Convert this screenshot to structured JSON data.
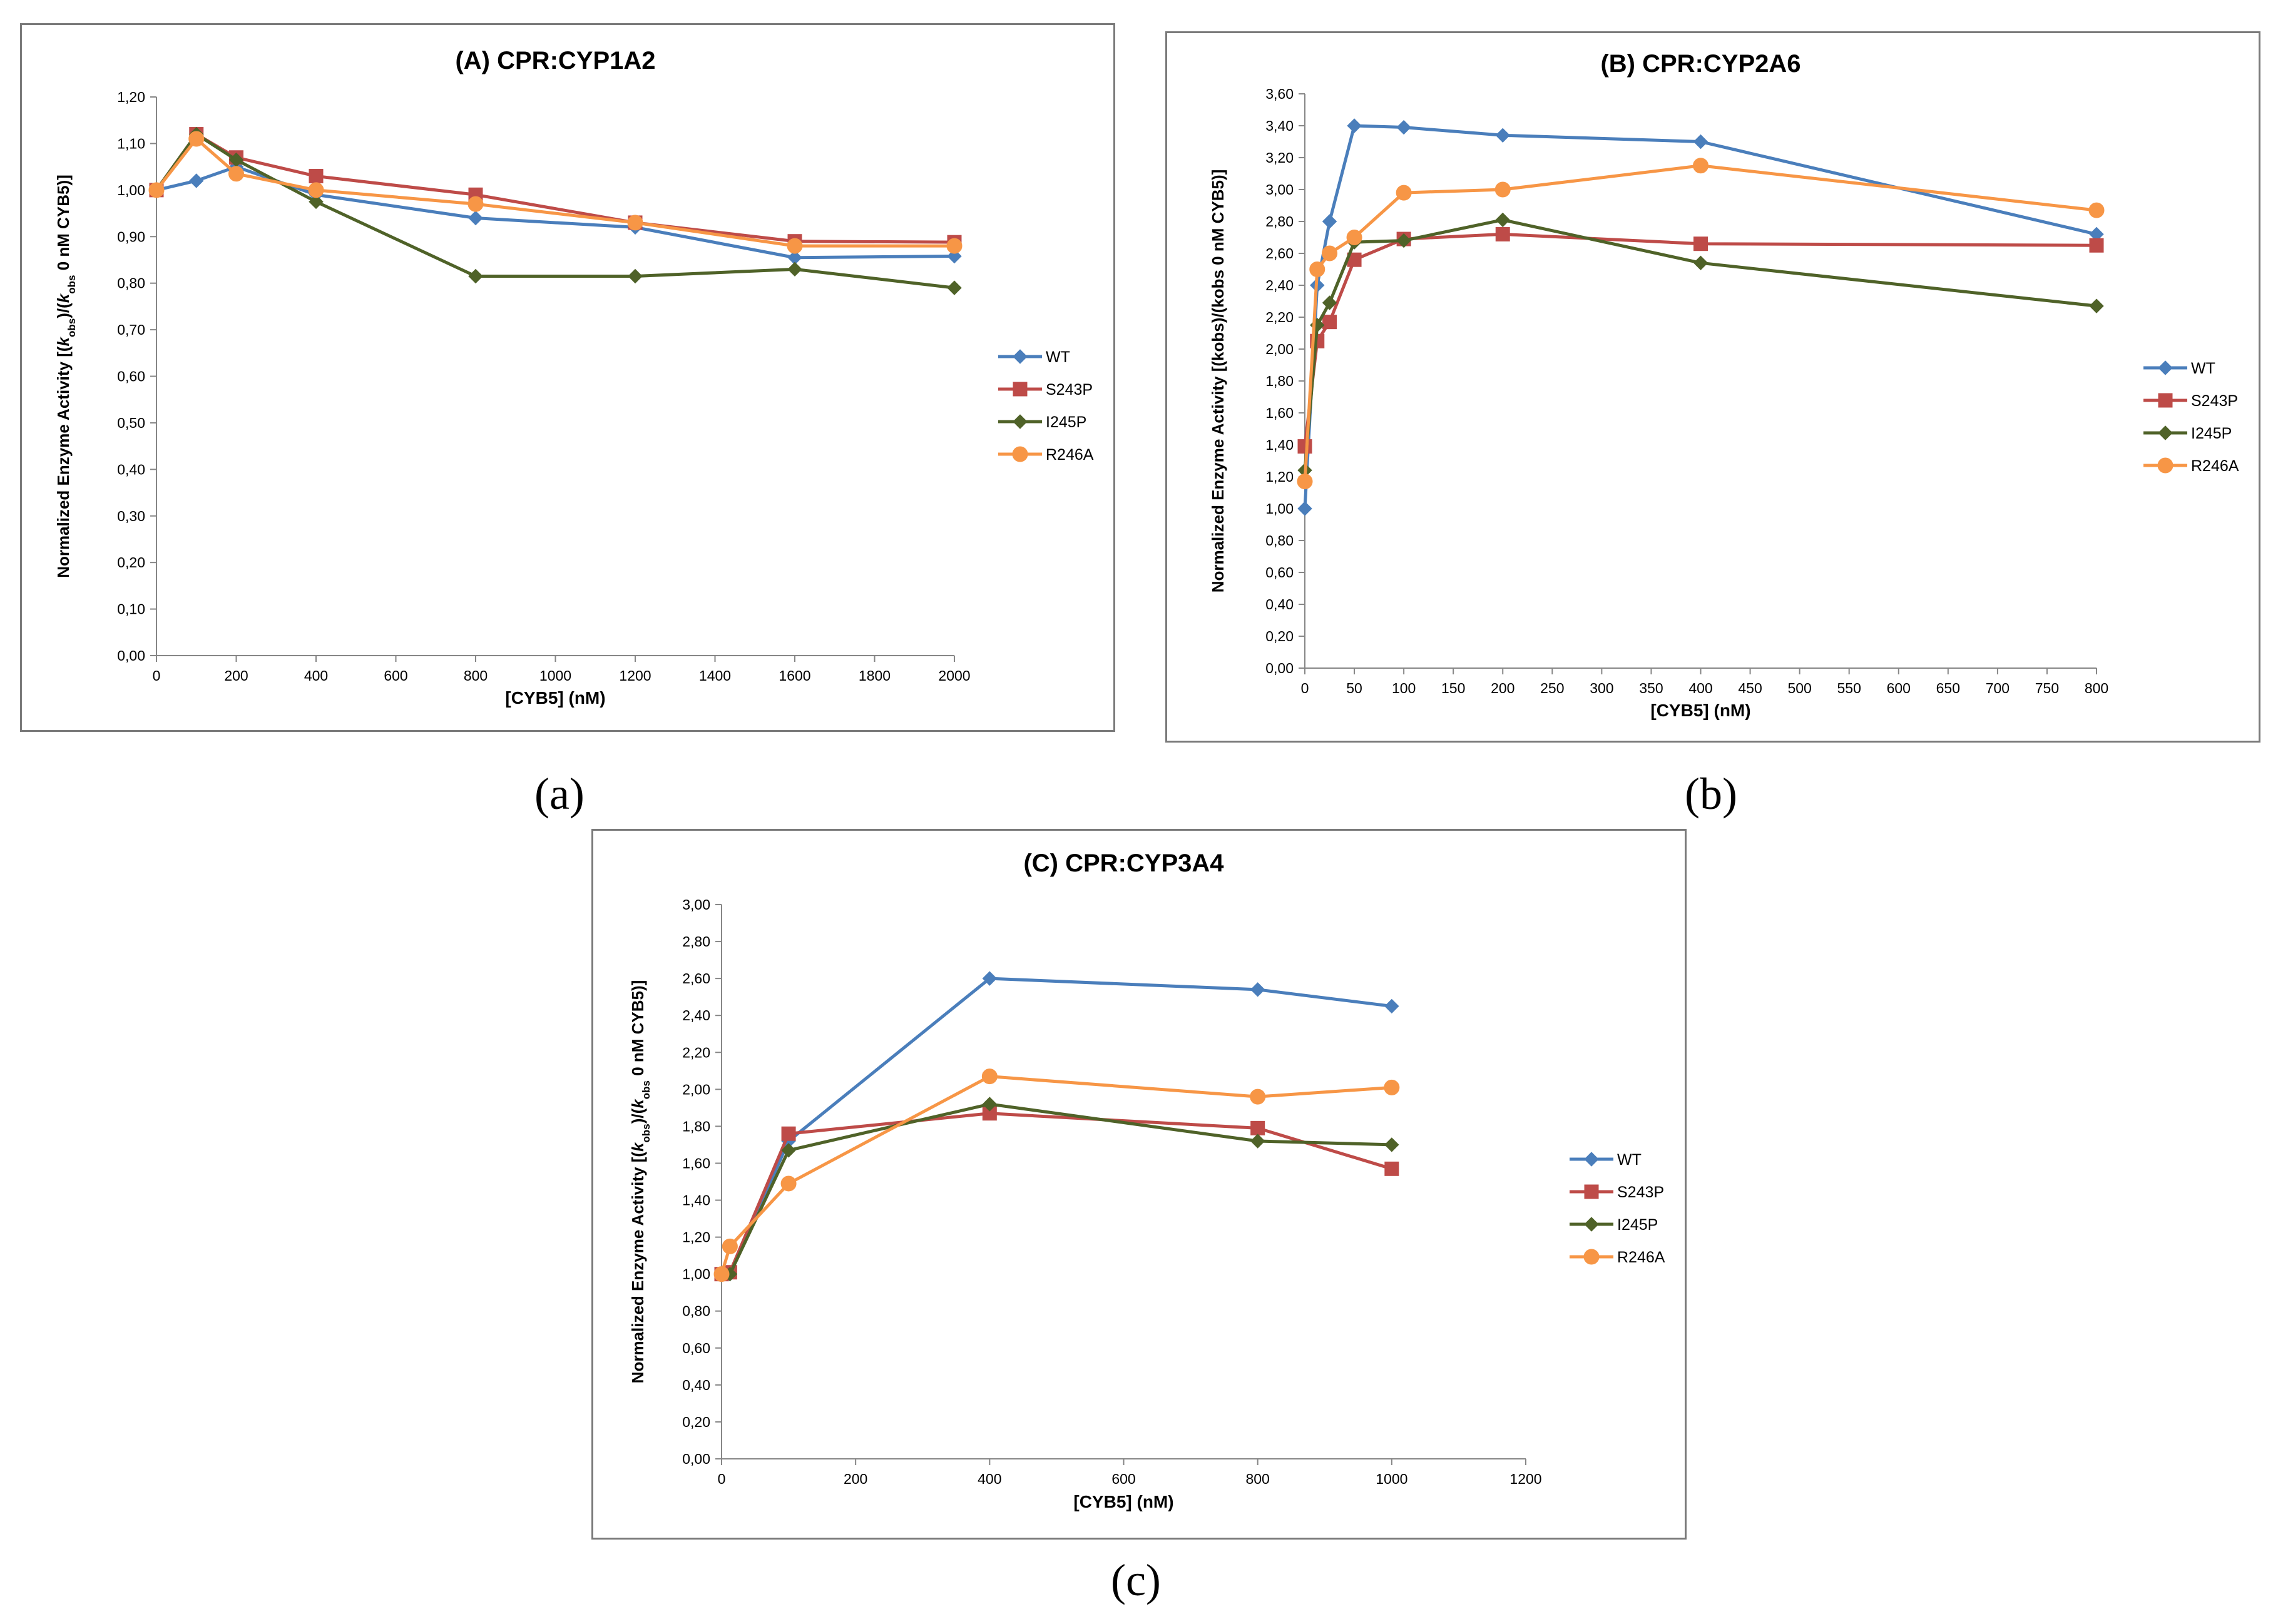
{
  "captions": {
    "a": "(a)",
    "b": "(b)",
    "c": "(c)"
  },
  "chart_data": [
    {
      "type": "line",
      "title": "(A) CPR:CYP1A2",
      "xlabel": "[CYB5] (nM)",
      "ylabel": "Normalized Enzyme Activity [(kobs)/(kobs 0 nM CYB5)]",
      "ylabel_parts": [
        "Normalized Enzyme Activity [(",
        "k",
        "obs",
        ")/(",
        "k",
        "obs",
        " 0 nM CYB5)]"
      ],
      "xlim": [
        0,
        2000
      ],
      "ylim": [
        0,
        1.2
      ],
      "xticks": [
        0,
        200,
        400,
        600,
        800,
        1000,
        1200,
        1400,
        1600,
        1800,
        2000
      ],
      "xtick_labels": [
        "0",
        "200",
        "400",
        "600",
        "800",
        "1000",
        "1200",
        "1400",
        "1600",
        "1800",
        "2000"
      ],
      "yticks": [
        0,
        0.1,
        0.2,
        0.3,
        0.4,
        0.5,
        0.6,
        0.7,
        0.8,
        0.9,
        1.0,
        1.1,
        1.2
      ],
      "ytick_labels": [
        "0,00",
        "0,10",
        "0,20",
        "0,30",
        "0,40",
        "0,50",
        "0,60",
        "0,70",
        "0,80",
        "0,90",
        "1,00",
        "1,10",
        "1,20"
      ],
      "grid": false,
      "legend_position": "right",
      "series": [
        {
          "name": "WT",
          "color": "#4a7ebb",
          "marker": "diamond",
          "x": [
            0,
            100,
            200,
            400,
            800,
            1200,
            1600,
            2000
          ],
          "y": [
            1.0,
            1.02,
            1.05,
            0.99,
            0.94,
            0.92,
            0.855,
            0.858
          ]
        },
        {
          "name": "S243P",
          "color": "#be4b48",
          "marker": "square",
          "x": [
            0,
            100,
            200,
            400,
            800,
            1200,
            1600,
            2000
          ],
          "y": [
            1.0,
            1.12,
            1.07,
            1.03,
            0.99,
            0.93,
            0.89,
            0.888
          ]
        },
        {
          "name": "I245P",
          "color": "#4f6228",
          "marker": "diamond",
          "x": [
            0,
            100,
            200,
            400,
            800,
            1200,
            1600,
            2000
          ],
          "y": [
            1.0,
            1.12,
            1.065,
            0.975,
            0.815,
            0.815,
            0.83,
            0.79
          ]
        },
        {
          "name": "R246A",
          "color": "#f79646",
          "marker": "circle",
          "x": [
            0,
            100,
            200,
            400,
            800,
            1200,
            1600,
            2000
          ],
          "y": [
            1.0,
            1.11,
            1.035,
            1.0,
            0.97,
            0.93,
            0.88,
            0.88
          ]
        }
      ]
    },
    {
      "type": "line",
      "title": "(B) CPR:CYP2A6",
      "xlabel": "[CYB5] (nM)",
      "ylabel": "Normalized Enzyme Activity [(kobs)/(kobs 0 nM CYB5)]",
      "ylabel_parts": [
        "Normalized Enzyme Activity [(kobs)/(kobs 0 nM CYB5)]"
      ],
      "xlim": [
        0,
        800
      ],
      "ylim": [
        0,
        3.6
      ],
      "xticks": [
        0,
        50,
        100,
        150,
        200,
        250,
        300,
        350,
        400,
        450,
        500,
        550,
        600,
        650,
        700,
        750,
        800
      ],
      "xtick_labels": [
        "0",
        "50",
        "100",
        "150",
        "200",
        "250",
        "300",
        "350",
        "400",
        "450",
        "500",
        "550",
        "600",
        "650",
        "700",
        "750",
        "800"
      ],
      "yticks": [
        0,
        0.2,
        0.4,
        0.6,
        0.8,
        1.0,
        1.2,
        1.4,
        1.6,
        1.8,
        2.0,
        2.2,
        2.4,
        2.6,
        2.8,
        3.0,
        3.2,
        3.4,
        3.6
      ],
      "ytick_labels": [
        "0,00",
        "0,20",
        "0,40",
        "0,60",
        "0,80",
        "1,00",
        "1,20",
        "1,40",
        "1,60",
        "1,80",
        "2,00",
        "2,20",
        "2,40",
        "2,60",
        "2,80",
        "3,00",
        "3,20",
        "3,40",
        "3,60"
      ],
      "grid": false,
      "legend_position": "right",
      "series": [
        {
          "name": "WT",
          "color": "#4a7ebb",
          "marker": "diamond",
          "x": [
            0,
            12.5,
            25,
            50,
            100,
            200,
            400,
            800
          ],
          "y": [
            1.0,
            2.4,
            2.8,
            3.4,
            3.39,
            3.34,
            3.3,
            2.72
          ]
        },
        {
          "name": "S243P",
          "color": "#be4b48",
          "marker": "square",
          "x": [
            0,
            12.5,
            25,
            50,
            100,
            200,
            400,
            800
          ],
          "y": [
            1.39,
            2.05,
            2.17,
            2.56,
            2.69,
            2.72,
            2.66,
            2.65
          ]
        },
        {
          "name": "I245P",
          "color": "#4f6228",
          "marker": "diamond",
          "x": [
            0,
            12.5,
            25,
            50,
            100,
            200,
            400,
            800
          ],
          "y": [
            1.24,
            2.15,
            2.29,
            2.67,
            2.68,
            2.81,
            2.54,
            2.27
          ]
        },
        {
          "name": "R246A",
          "color": "#f79646",
          "marker": "circle",
          "x": [
            0,
            12.5,
            25,
            50,
            100,
            200,
            400,
            800
          ],
          "y": [
            1.17,
            2.5,
            2.6,
            2.7,
            2.98,
            3.0,
            3.15,
            2.87
          ]
        }
      ]
    },
    {
      "type": "line",
      "title": "(C) CPR:CYP3A4",
      "xlabel": "[CYB5] (nM)",
      "ylabel": "Normalized Enzyme Activity [(kobs)/(kobs 0 nM CYB5)]",
      "ylabel_parts": [
        "Normalized Enzyme Activity [(",
        "k",
        "obs",
        ")/(",
        "k",
        "obs",
        " 0 nM CYB5)]"
      ],
      "xlim": [
        0,
        1200
      ],
      "ylim": [
        0,
        3.0
      ],
      "xticks": [
        0,
        200,
        400,
        600,
        800,
        1000,
        1200
      ],
      "xtick_labels": [
        "0",
        "200",
        "400",
        "600",
        "800",
        "1000",
        "1200"
      ],
      "yticks": [
        0,
        0.2,
        0.4,
        0.6,
        0.8,
        1.0,
        1.2,
        1.4,
        1.6,
        1.8,
        2.0,
        2.2,
        2.4,
        2.6,
        2.8,
        3.0
      ],
      "ytick_labels": [
        "0,00",
        "0,20",
        "0,40",
        "0,60",
        "0,80",
        "1,00",
        "1,20",
        "1,40",
        "1,60",
        "1,80",
        "2,00",
        "2,20",
        "2,40",
        "2,60",
        "2,80",
        "3,00"
      ],
      "grid": false,
      "legend_position": "right",
      "series": [
        {
          "name": "WT",
          "color": "#4a7ebb",
          "marker": "diamond",
          "x": [
            0,
            12.5,
            100,
            400,
            800,
            1000
          ],
          "y": [
            1.0,
            1.0,
            1.72,
            2.6,
            2.54,
            2.45
          ]
        },
        {
          "name": "S243P",
          "color": "#be4b48",
          "marker": "square",
          "x": [
            0,
            12.5,
            100,
            400,
            800,
            1000
          ],
          "y": [
            1.0,
            1.01,
            1.76,
            1.87,
            1.79,
            1.57
          ]
        },
        {
          "name": "I245P",
          "color": "#4f6228",
          "marker": "diamond",
          "x": [
            0,
            12.5,
            100,
            400,
            800,
            1000
          ],
          "y": [
            1.0,
            1.0,
            1.67,
            1.92,
            1.72,
            1.7
          ]
        },
        {
          "name": "R246A",
          "color": "#f79646",
          "marker": "circle",
          "x": [
            0,
            12.5,
            100,
            400,
            800,
            1000
          ],
          "y": [
            1.0,
            1.15,
            1.49,
            2.07,
            1.96,
            2.01
          ]
        }
      ]
    }
  ]
}
